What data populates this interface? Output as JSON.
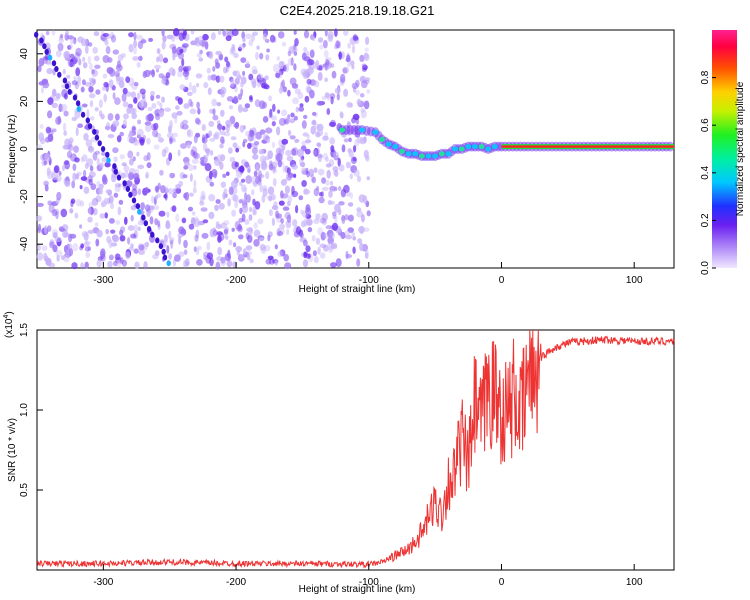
{
  "title": "C2E4.2025.218.19.18.G21",
  "colors": {
    "snr_line": "#ee3333",
    "spectrogram_dots": "#6a2cf0",
    "spectrogram_light": "#c8b4fa"
  },
  "chart_data": [
    {
      "type": "heatmap",
      "name": "spectrogram",
      "xlabel": "Height of straight line (km)",
      "ylabel": "Frequency (Hz)",
      "xlim": [
        -350,
        130
      ],
      "ylim": [
        -50,
        50
      ],
      "x_ticks": [
        -300,
        -200,
        -100,
        0,
        100
      ],
      "x_tick_labels": [
        "-300",
        "-200",
        "-100",
        "0",
        "100"
      ],
      "y_ticks": [
        -40,
        -20,
        0,
        20,
        40
      ],
      "y_tick_labels": [
        "-40",
        "-20",
        "0",
        "20",
        "40"
      ],
      "noise_region_x": [
        -350,
        -100
      ],
      "signal_track": {
        "x": [
          -120,
          -105,
          -95,
          -90,
          -85,
          -80,
          -75,
          -70,
          -65,
          -60,
          -55,
          -50,
          -45,
          -40,
          -35,
          -30,
          -25,
          -20,
          -15,
          -10,
          -5,
          0,
          20,
          50,
          80,
          110,
          130
        ],
        "y": [
          8,
          8,
          7,
          4,
          2,
          1,
          -1,
          -2,
          -2,
          -3,
          -3,
          -3,
          -2,
          -2,
          0,
          0,
          1,
          1,
          1,
          0,
          1,
          1,
          1,
          1,
          1,
          1,
          1
        ]
      },
      "diagonal_feature": {
        "x": [
          -350,
          -250
        ],
        "y": [
          48,
          -48
        ]
      },
      "colorbar": {
        "label": "Normalized spectral amplitude",
        "range": [
          0,
          1
        ],
        "ticks": [
          0,
          0.2,
          0.4,
          0.6,
          0.8
        ],
        "tick_labels": [
          "0.0",
          "0.2",
          "0.4",
          "0.6",
          "0.8"
        ]
      }
    },
    {
      "type": "line",
      "name": "snr",
      "xlabel": "Height of straight line (km)",
      "ylabel": "SNR (10 * v/v)",
      "y_scale_label": "(x10",
      "y_scale_exp": "4",
      "y_scale_close": ")",
      "xlim": [
        -350,
        130
      ],
      "ylim": [
        0,
        15000
      ],
      "x_ticks": [
        -300,
        -200,
        -100,
        0,
        100
      ],
      "x_tick_labels": [
        "-300",
        "-200",
        "-100",
        "0",
        "100"
      ],
      "y_ticks": [
        5000,
        10000,
        15000
      ],
      "y_tick_labels": [
        "0.5",
        "1.0",
        "1.5"
      ],
      "x": [
        -350,
        -300,
        -250,
        -200,
        -150,
        -100,
        -90,
        -80,
        -70,
        -60,
        -50,
        -45,
        -40,
        -35,
        -30,
        -25,
        -20,
        -15,
        -10,
        -5,
        0,
        5,
        10,
        15,
        20,
        25,
        30,
        40,
        50,
        60,
        80,
        100,
        130
      ],
      "y": [
        400,
        400,
        500,
        400,
        400,
        350,
        500,
        900,
        1300,
        2300,
        4200,
        3500,
        5500,
        6000,
        8200,
        6500,
        10300,
        9000,
        11500,
        10800,
        10000,
        9900,
        11000,
        9600,
        12100,
        12700,
        13300,
        13900,
        14200,
        14300,
        14400,
        14300,
        14300
      ]
    }
  ]
}
